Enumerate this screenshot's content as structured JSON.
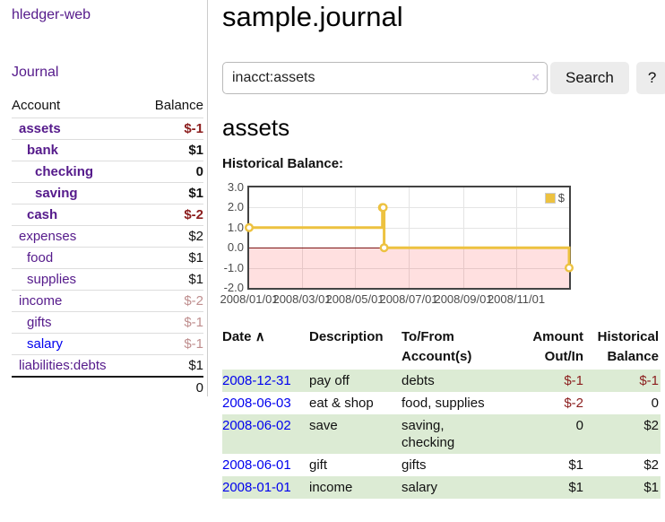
{
  "colors": {
    "visited_link_purple": "#551a8b",
    "link_blue": "#0000ee",
    "negative_red": "#8b1d1d",
    "negative_dim_rose": "#bf8e8e",
    "row_stripe_green": "#dcebd4",
    "chart_series_yellow": "#edc240",
    "chart_negative_fill": "rgba(255,0,0,0.12)",
    "chart_zero_line": "#7c1414"
  },
  "sidebar": {
    "brand": "hledger-web",
    "nav_journal": "Journal",
    "accounts_table": {
      "headers": {
        "account": "Account",
        "balance": "Balance"
      },
      "rows": [
        {
          "name": "assets",
          "level": 1,
          "link_style": "acct-bold",
          "balance": "$-1",
          "balance_style": "bal-neg-bold"
        },
        {
          "name": "bank",
          "level": 2,
          "link_style": "acct-bold",
          "balance": "$1",
          "balance_style": "bal-bold"
        },
        {
          "name": "checking",
          "level": 3,
          "link_style": "acct-bold",
          "balance": "0",
          "balance_style": "bal-bold"
        },
        {
          "name": "saving",
          "level": 3,
          "link_style": "acct-bold",
          "balance": "$1",
          "balance_style": "bal-bold"
        },
        {
          "name": "cash",
          "level": 2,
          "link_style": "acct-bold",
          "balance": "$-2",
          "balance_style": "bal-neg-bold"
        },
        {
          "name": "expenses",
          "level": 1,
          "link_style": "acct",
          "balance": "$2",
          "balance_style": "bal-plain"
        },
        {
          "name": "food",
          "level": 2,
          "link_style": "acct",
          "balance": "$1",
          "balance_style": "bal-plain"
        },
        {
          "name": "supplies",
          "level": 2,
          "link_style": "acct",
          "balance": "$1",
          "balance_style": "bal-plain"
        },
        {
          "name": "income",
          "level": 1,
          "link_style": "acct",
          "balance": "$-2",
          "balance_style": "bal-neg-dim"
        },
        {
          "name": "gifts",
          "level": 2,
          "link_style": "acct",
          "balance": "$-1",
          "balance_style": "bal-neg-dim"
        },
        {
          "name": "salary",
          "level": 2,
          "link_style": "acct-blue",
          "balance": "$-1",
          "balance_style": "bal-neg-dim"
        },
        {
          "name": "liabilities:debts",
          "level": 1,
          "link_style": "acct",
          "balance": "$1",
          "balance_style": "bal-plain"
        }
      ],
      "total": "0"
    }
  },
  "main": {
    "title": "sample.journal",
    "search": {
      "value": "inacct:assets",
      "clear_icon": "×",
      "button_label": "Search",
      "help_label": "?"
    },
    "account_heading": "assets",
    "chart_label": "Historical Balance:"
  },
  "chart_data": {
    "type": "line",
    "step": true,
    "title": "Historical Balance:",
    "legend": "$",
    "legend_position": "top-right",
    "grid": true,
    "xlim": [
      "2008-01-01",
      "2008-12-31"
    ],
    "ylim": [
      -2,
      3
    ],
    "yticks": [
      {
        "label": "3.0",
        "value": 3
      },
      {
        "label": "2.0",
        "value": 2
      },
      {
        "label": "1.0",
        "value": 1
      },
      {
        "label": "0.0",
        "value": 0
      },
      {
        "label": "-1.0",
        "value": -1
      },
      {
        "label": "-2.0",
        "value": -2
      }
    ],
    "xticks": [
      {
        "label": "2008/01/01",
        "date": "2008-01-01"
      },
      {
        "label": "2008/03/01",
        "date": "2008-03-01"
      },
      {
        "label": "2008/05/01",
        "date": "2008-05-01"
      },
      {
        "label": "2008/07/01",
        "date": "2008-07-01"
      },
      {
        "label": "2008/09/01",
        "date": "2008-09-01"
      },
      {
        "label": "2008/11/01",
        "date": "2008-11-01"
      }
    ],
    "series": [
      {
        "name": "$",
        "color": "#edc240",
        "points": [
          {
            "date": "2008-01-01",
            "value": 1
          },
          {
            "date": "2008-06-01",
            "value": 2
          },
          {
            "date": "2008-06-02",
            "value": 2
          },
          {
            "date": "2008-06-03",
            "value": 0
          },
          {
            "date": "2008-12-31",
            "value": -1
          }
        ]
      }
    ]
  },
  "register": {
    "headers": {
      "date": "Date",
      "sort_icon": "∧",
      "description": "Description",
      "accounts": "To/From\nAccount(s)",
      "amount": "Amount\nOut/In",
      "balance": "Historical\nBalance"
    },
    "rows": [
      {
        "date": "2008-12-31",
        "description": "pay off",
        "accounts": "debts",
        "amount": "$-1",
        "amount_style": "amt-neg",
        "balance": "$-1",
        "balance_style": "amt-neg",
        "shaded": true
      },
      {
        "date": "2008-06-03",
        "description": "eat & shop",
        "accounts": "food, supplies",
        "amount": "$-2",
        "amount_style": "amt-neg",
        "balance": "0",
        "balance_style": "",
        "shaded": false
      },
      {
        "date": "2008-06-02",
        "description": "save",
        "accounts": "saving,\nchecking",
        "amount": "0",
        "amount_style": "",
        "balance": "$2",
        "balance_style": "",
        "shaded": true
      },
      {
        "date": "2008-06-01",
        "description": "gift",
        "accounts": "gifts",
        "amount": "$1",
        "amount_style": "",
        "balance": "$2",
        "balance_style": "",
        "shaded": false
      },
      {
        "date": "2008-01-01",
        "description": "income",
        "accounts": "salary",
        "amount": "$1",
        "amount_style": "",
        "balance": "$1",
        "balance_style": "",
        "shaded": true
      }
    ]
  }
}
